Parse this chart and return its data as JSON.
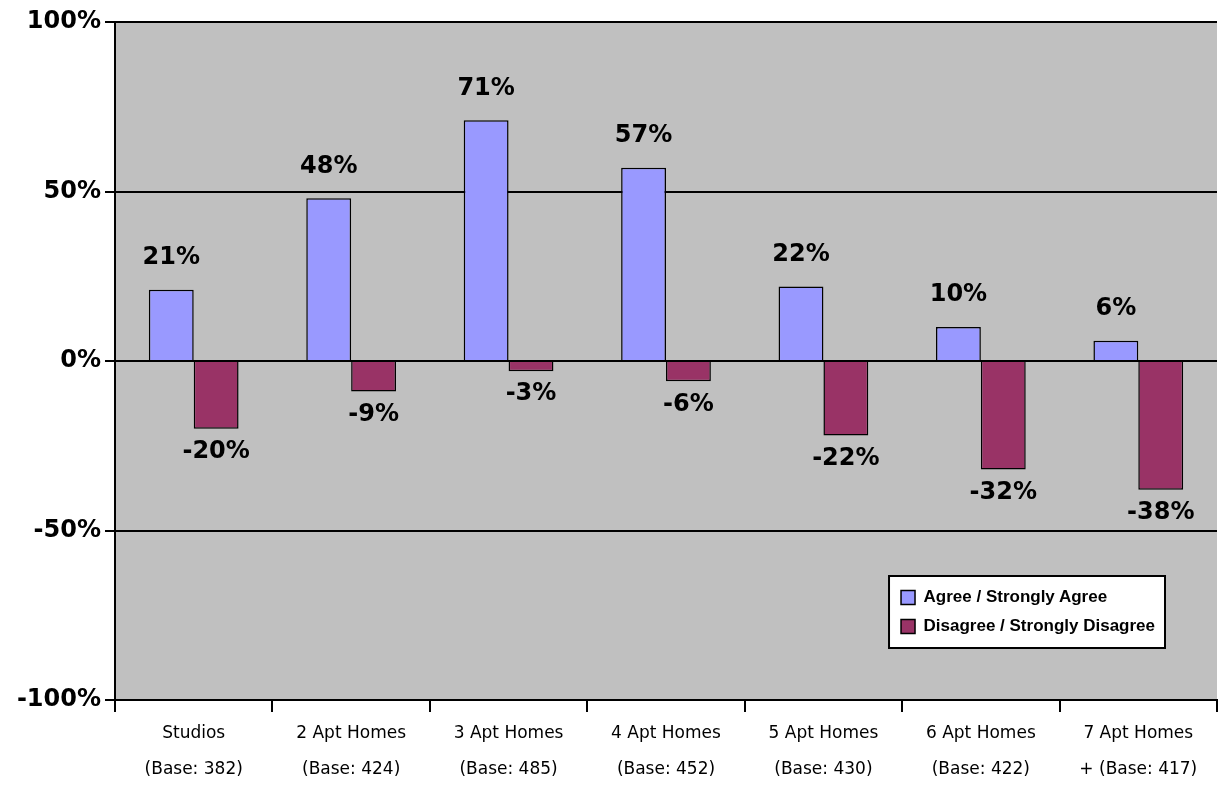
{
  "chart_data": {
    "type": "bar",
    "categories": [
      "Studios\n(Base: 382)",
      "2 Apt Homes\n(Base: 424)",
      "3 Apt Homes\n(Base: 485)",
      "4 Apt Homes\n(Base: 452)",
      "5 Apt Homes\n(Base: 430)",
      "6 Apt Homes\n(Base: 422)",
      "7 Apt Homes\n+ (Base: 417)"
    ],
    "series": [
      {
        "name": "Agree / Strongly Agree",
        "color": "#9999ff",
        "values": [
          21,
          48,
          71,
          57,
          22,
          10,
          6
        ],
        "value_labels": [
          "21%",
          "48%",
          "71%",
          "57%",
          "22%",
          "10%",
          "6%"
        ]
      },
      {
        "name": "Disagree / Strongly Disagree",
        "color": "#993366",
        "values": [
          -20,
          -9,
          -3,
          -6,
          -22,
          -32,
          -38
        ],
        "value_labels": [
          "-20%",
          "-9%",
          "-3%",
          "-6%",
          "-22%",
          "-32%",
          "-38%"
        ]
      }
    ],
    "ylim": [
      -100,
      100
    ],
    "yticks": [
      {
        "value": -100,
        "label": "-100%"
      },
      {
        "value": -50,
        "label": "-50%"
      },
      {
        "value": 0,
        "label": "0%"
      },
      {
        "value": 50,
        "label": "50%"
      },
      {
        "value": 100,
        "label": "100%"
      }
    ],
    "grid": "y",
    "legend": "bottom right"
  }
}
